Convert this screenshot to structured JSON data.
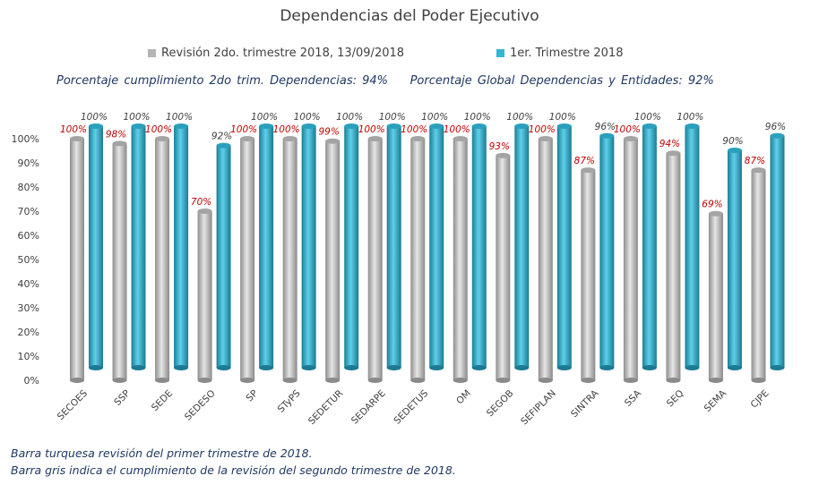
{
  "chart_data": {
    "type": "bar",
    "title": "Dependencias del Poder Ejecutivo",
    "note_left": "Porcentaje cumplimiento 2do trim. Dependencias: 94%",
    "note_right": "Porcentaje Global Dependencias y Entidades: 92%",
    "categories": [
      "SECOES",
      "SSP",
      "SEDE",
      "SEDESO",
      "SP",
      "STyPS",
      "SEDETUR",
      "SEDARPE",
      "SEDETUS",
      "OM",
      "SEGOB",
      "SEFIPLAN",
      "SINTRA",
      "SSA",
      "SEQ",
      "SEMA",
      "CJPE"
    ],
    "series": [
      {
        "name": "Revisión 2do. trimestre 2018, 13/09/2018",
        "color": "#b5b5b5",
        "values": [
          100,
          98,
          100,
          70,
          100,
          100,
          99,
          100,
          100,
          100,
          93,
          100,
          87,
          100,
          94,
          69,
          87
        ]
      },
      {
        "name": "1er. Trimestre 2018",
        "color": "#35b5d3",
        "values": [
          100,
          100,
          100,
          92,
          100,
          100,
          100,
          100,
          100,
          100,
          100,
          100,
          96,
          100,
          100,
          90,
          96
        ]
      }
    ],
    "yticks": [
      "0%",
      "10%",
      "20%",
      "30%",
      "40%",
      "50%",
      "60%",
      "70%",
      "80%",
      "90%",
      "100%"
    ],
    "ylim": [
      0,
      100
    ],
    "legend": "top",
    "grid": false
  },
  "footnotes": [
    "Barra turquesa revisión del primer trimestre de 2018.",
    "Barra gris indica el cumplimiento de la revisión del segundo trimestre de 2018."
  ]
}
